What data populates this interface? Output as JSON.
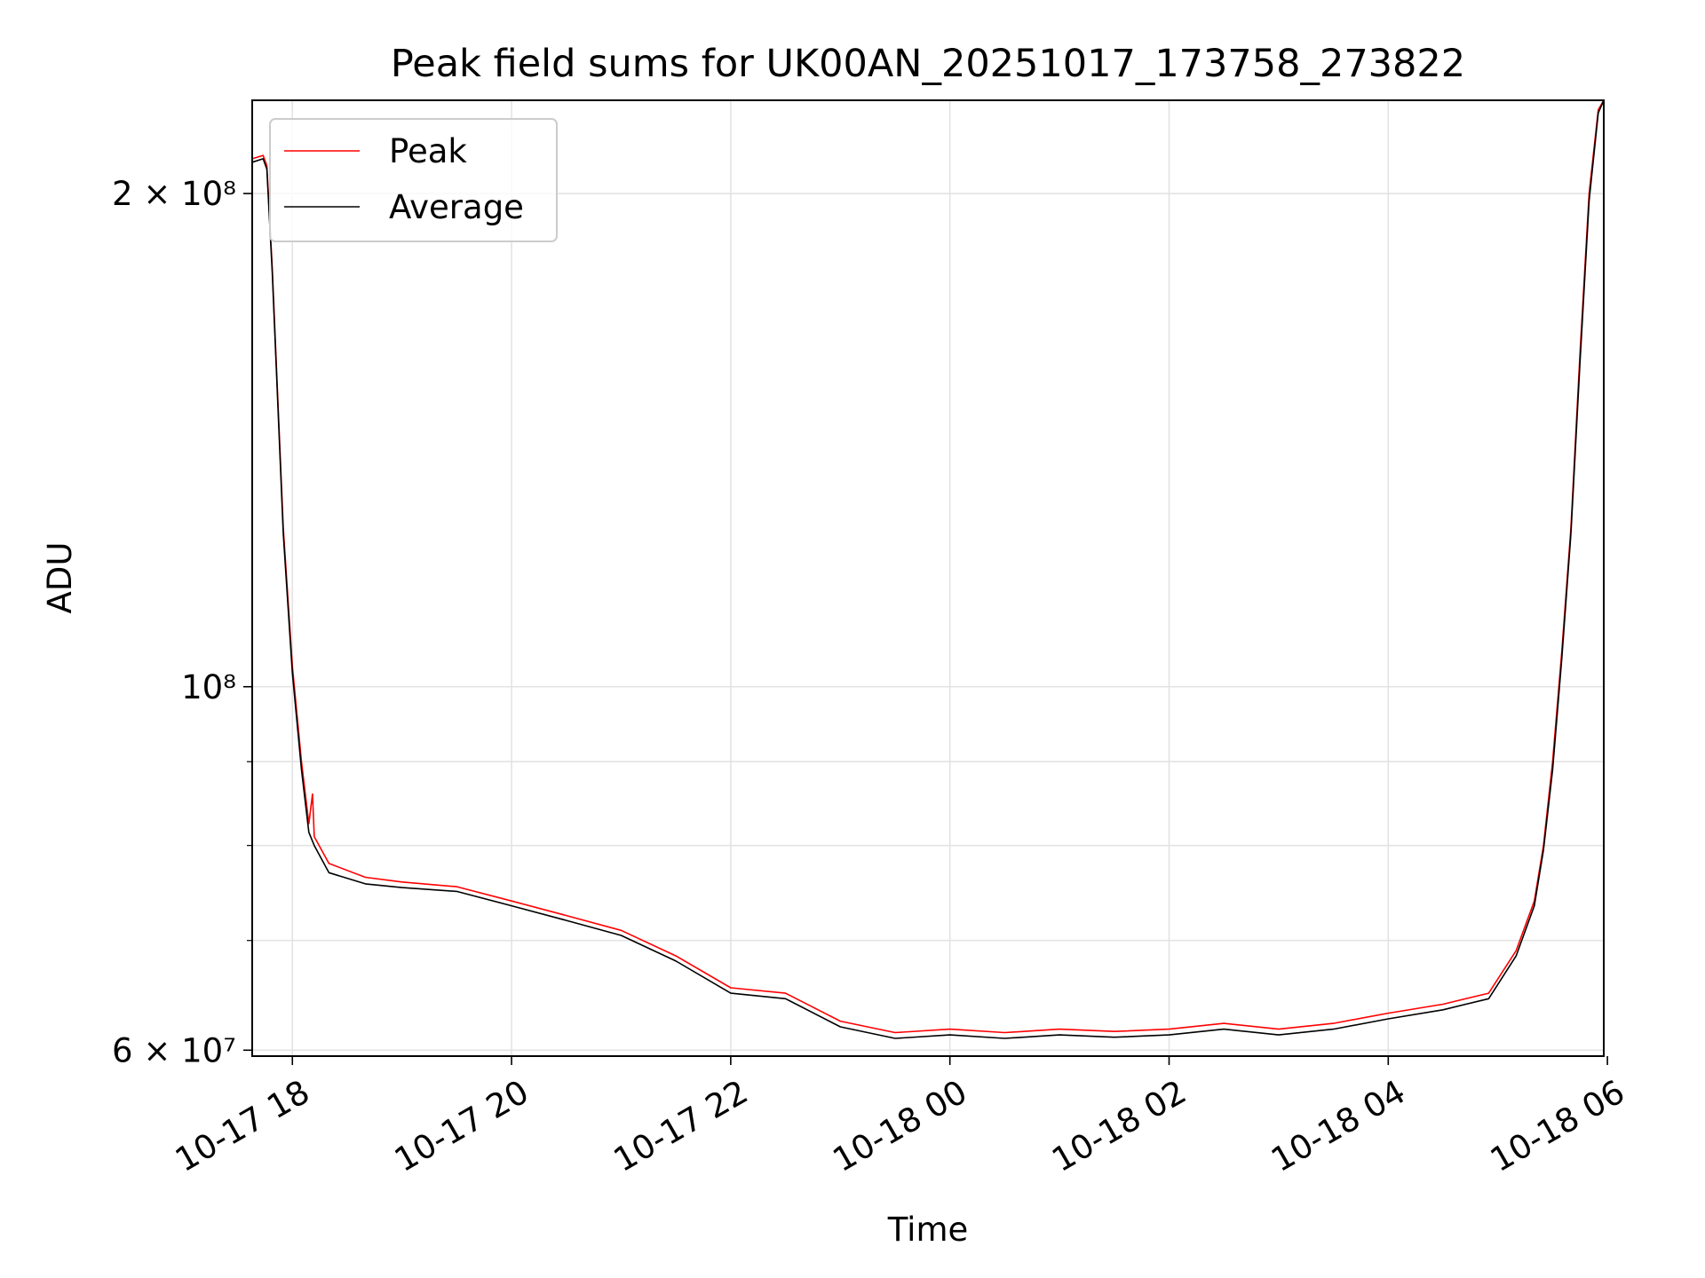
{
  "chart_data": {
    "type": "line",
    "title": "Peak field sums for UK00AN_20251017_173758_273822",
    "xlabel": "Time",
    "ylabel": "ADU",
    "x_is_datetime": true,
    "xlim": [
      "2025-10-17 17:38",
      "2025-10-18 05:58"
    ],
    "ylim": [
      59500000,
      228000000
    ],
    "yscale": "log",
    "grid": true,
    "legend_position": "upper left",
    "x_ticks": [
      {
        "label": "10-17 18",
        "value": "2025-10-17 18:00"
      },
      {
        "label": "10-17 20",
        "value": "2025-10-17 20:00"
      },
      {
        "label": "10-17 22",
        "value": "2025-10-17 22:00"
      },
      {
        "label": "10-18 00",
        "value": "2025-10-18 00:00"
      },
      {
        "label": "10-18 02",
        "value": "2025-10-18 02:00"
      },
      {
        "label": "10-18 04",
        "value": "2025-10-18 04:00"
      },
      {
        "label": "10-18 06",
        "value": "2025-10-18 06:00"
      }
    ],
    "y_ticks": [
      {
        "label": "2 × 10⁸",
        "value": 200000000
      },
      {
        "label": "10⁸",
        "value": 100000000
      },
      {
        "label": "6 × 10⁷",
        "value": 60000000
      }
    ],
    "y_minor_ticks": [
      70000000,
      80000000,
      90000000
    ],
    "series": [
      {
        "name": "Peak",
        "color": "#ff0000",
        "x": [
          "2025-10-17 17:38",
          "2025-10-17 17:44",
          "2025-10-17 17:46",
          "2025-10-17 17:49",
          "2025-10-17 17:52",
          "2025-10-17 17:55",
          "2025-10-17 18:00",
          "2025-10-17 18:05",
          "2025-10-17 18:09",
          "2025-10-17 18:11",
          "2025-10-17 18:12",
          "2025-10-17 18:20",
          "2025-10-17 18:40",
          "2025-10-17 19:00",
          "2025-10-17 19:30",
          "2025-10-17 20:00",
          "2025-10-17 20:30",
          "2025-10-17 21:00",
          "2025-10-17 21:30",
          "2025-10-17 22:00",
          "2025-10-17 22:30",
          "2025-10-17 23:00",
          "2025-10-17 23:30",
          "2025-10-18 00:00",
          "2025-10-18 00:30",
          "2025-10-18 01:00",
          "2025-10-18 01:30",
          "2025-10-18 02:00",
          "2025-10-18 02:30",
          "2025-10-18 03:00",
          "2025-10-18 03:30",
          "2025-10-18 04:00",
          "2025-10-18 04:30",
          "2025-10-18 04:55",
          "2025-10-18 05:10",
          "2025-10-18 05:20",
          "2025-10-18 05:25",
          "2025-10-18 05:30",
          "2025-10-18 05:35",
          "2025-10-18 05:40",
          "2025-10-18 05:45",
          "2025-10-18 05:50",
          "2025-10-18 05:55",
          "2025-10-18 05:58"
        ],
        "values": [
          210000000,
          211000000,
          208000000,
          180000000,
          150000000,
          125000000,
          103000000,
          90000000,
          82500000,
          86000000,
          81000000,
          78000000,
          76500000,
          76000000,
          75500000,
          74000000,
          72500000,
          71000000,
          68500000,
          65500000,
          65000000,
          62500000,
          61500000,
          61800000,
          61500000,
          61800000,
          61600000,
          61800000,
          62300000,
          61800000,
          62300000,
          63200000,
          64000000,
          65000000,
          69000000,
          74000000,
          80000000,
          90000000,
          105000000,
          125000000,
          160000000,
          200000000,
          225000000,
          228000000
        ]
      },
      {
        "name": "Average",
        "color": "#000000",
        "x": [
          "2025-10-17 17:38",
          "2025-10-17 17:44",
          "2025-10-17 17:46",
          "2025-10-17 17:49",
          "2025-10-17 17:52",
          "2025-10-17 17:55",
          "2025-10-17 18:00",
          "2025-10-17 18:05",
          "2025-10-17 18:09",
          "2025-10-17 18:12",
          "2025-10-17 18:20",
          "2025-10-17 18:40",
          "2025-10-17 19:00",
          "2025-10-17 19:30",
          "2025-10-17 20:00",
          "2025-10-17 20:30",
          "2025-10-17 21:00",
          "2025-10-17 21:30",
          "2025-10-17 22:00",
          "2025-10-17 22:30",
          "2025-10-17 23:00",
          "2025-10-17 23:30",
          "2025-10-18 00:00",
          "2025-10-18 00:30",
          "2025-10-18 01:00",
          "2025-10-18 01:30",
          "2025-10-18 02:00",
          "2025-10-18 02:30",
          "2025-10-18 03:00",
          "2025-10-18 03:30",
          "2025-10-18 04:00",
          "2025-10-18 04:30",
          "2025-10-18 04:55",
          "2025-10-18 05:10",
          "2025-10-18 05:20",
          "2025-10-18 05:25",
          "2025-10-18 05:30",
          "2025-10-18 05:35",
          "2025-10-18 05:40",
          "2025-10-18 05:45",
          "2025-10-18 05:50",
          "2025-10-18 05:55",
          "2025-10-18 05:58"
        ],
        "values": [
          209000000,
          210000000,
          207000000,
          179000000,
          149000000,
          124000000,
          102000000,
          89000000,
          81500000,
          80000000,
          77000000,
          75800000,
          75400000,
          75000000,
          73500000,
          72000000,
          70500000,
          68000000,
          65000000,
          64500000,
          62000000,
          61000000,
          61300000,
          61000000,
          61300000,
          61100000,
          61300000,
          61800000,
          61300000,
          61800000,
          62700000,
          63500000,
          64500000,
          68500000,
          73500000,
          79500000,
          89000000,
          104000000,
          124000000,
          158000000,
          198000000,
          224000000,
          228000000
        ]
      }
    ]
  }
}
